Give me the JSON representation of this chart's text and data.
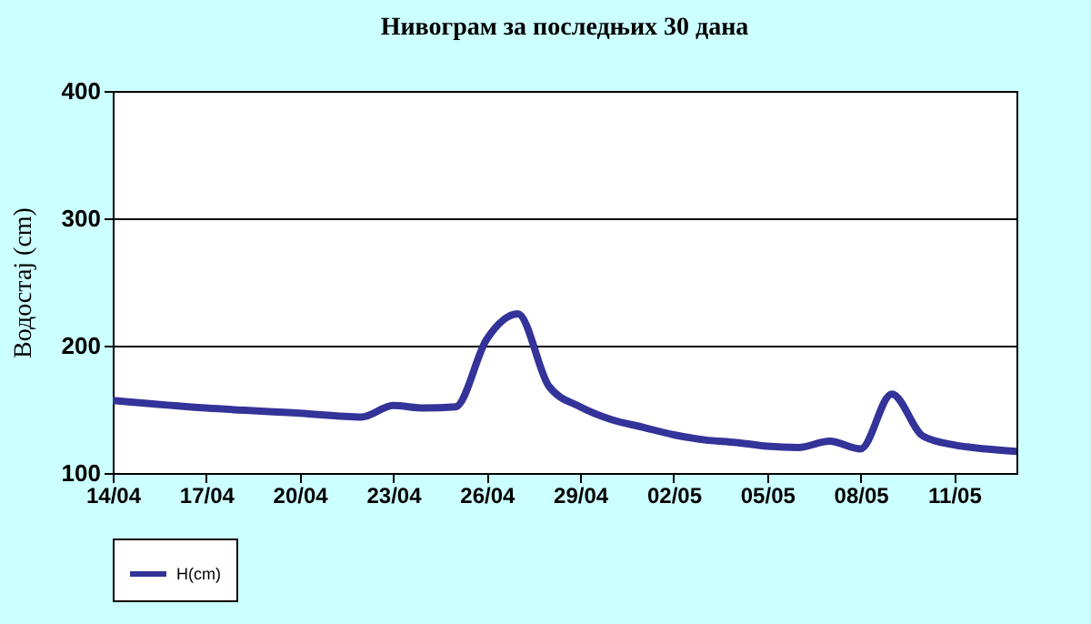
{
  "chart_data": {
    "type": "line",
    "title": "Нивограм за последњих 30 дана",
    "ylabel": "Водостај (cm)",
    "x": [
      "--04-14",
      "--04-17",
      "--04-20",
      "--04-22",
      "--04-23",
      "--04-24",
      "--04-25",
      "--04-26",
      "--04-27",
      "--04-28",
      "--04-29",
      "--04-30",
      "--05-01",
      "--05-02",
      "--05-03",
      "--05-04",
      "--05-05",
      "--05-06",
      "--05-07",
      "--05-08",
      "--05-09",
      "--05-10",
      "--05-11",
      "--05-12",
      "--05-13"
    ],
    "series": [
      {
        "name": "H(cm)",
        "color": "#333399",
        "values": [
          157,
          151,
          147,
          144,
          153,
          151,
          152,
          205,
          225,
          168,
          152,
          142,
          136,
          130,
          126,
          124,
          121,
          120,
          125,
          119,
          162,
          129,
          122,
          119,
          117
        ]
      }
    ],
    "xlim": [
      "--04-14",
      "--05-13"
    ],
    "xticks": [
      {
        "value": "--04-14",
        "label": "14/04"
      },
      {
        "value": "--04-17",
        "label": "17/04"
      },
      {
        "value": "--04-20",
        "label": "20/04"
      },
      {
        "value": "--04-23",
        "label": "23/04"
      },
      {
        "value": "--04-26",
        "label": "26/04"
      },
      {
        "value": "--04-29",
        "label": "29/04"
      },
      {
        "value": "--05-02",
        "label": "02/05"
      },
      {
        "value": "--05-05",
        "label": "05/05"
      },
      {
        "value": "--05-08",
        "label": "08/05"
      },
      {
        "value": "--05-11",
        "label": "11/05"
      }
    ],
    "ylim": [
      100,
      400
    ],
    "yticks": [
      100,
      200,
      300,
      400
    ],
    "grid": "y",
    "legend": "bottom",
    "marker": "none",
    "line_style": "solid"
  }
}
